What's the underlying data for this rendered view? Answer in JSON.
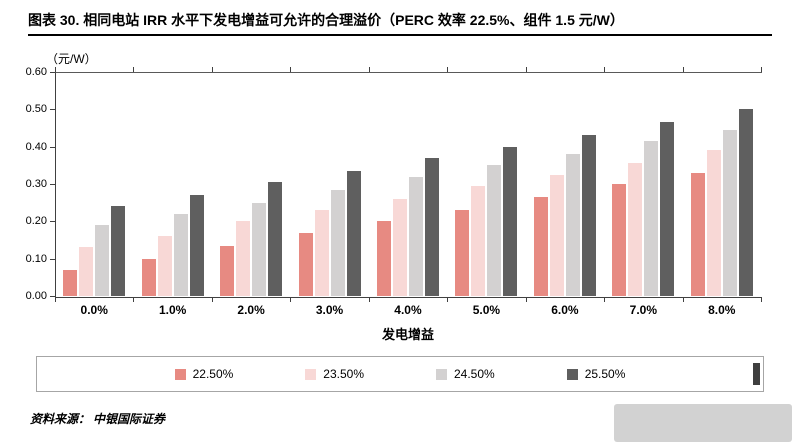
{
  "title": "图表 30. 相同电站 IRR 水平下发电增益可允许的合理溢价（PERC 效率 22.5%、组件 1.5 元/W）",
  "source": "资料来源： 中银国际证券",
  "chart_data": {
    "type": "bar",
    "title": "相同电站 IRR 水平下发电增益可允许的合理溢价（PERC 效率 22.5%、组件 1.5 元/W）",
    "unit_label": "（元/W）",
    "xlabel": "发电增益",
    "ylabel": "元/W",
    "ylim": [
      0,
      0.6
    ],
    "grid": false,
    "legend_position": "bottom",
    "y_ticks": [
      "0.00",
      "0.10",
      "0.20",
      "0.30",
      "0.40",
      "0.50",
      "0.60"
    ],
    "categories": [
      "0.0%",
      "1.0%",
      "2.0%",
      "3.0%",
      "4.0%",
      "5.0%",
      "6.0%",
      "7.0%",
      "8.0%"
    ],
    "series": [
      {
        "name": "22.50%",
        "color": "#e78a82",
        "values": [
          0.07,
          0.1,
          0.135,
          0.17,
          0.2,
          0.23,
          0.265,
          0.3,
          0.33
        ]
      },
      {
        "name": "23.50%",
        "color": "#f8d8d6",
        "values": [
          0.13,
          0.16,
          0.2,
          0.23,
          0.26,
          0.295,
          0.325,
          0.355,
          0.39
        ]
      },
      {
        "name": "24.50%",
        "color": "#d3d1d1",
        "values": [
          0.19,
          0.22,
          0.25,
          0.285,
          0.32,
          0.35,
          0.38,
          0.415,
          0.445
        ]
      },
      {
        "name": "25.50%",
        "color": "#5f5f5f",
        "values": [
          0.24,
          0.27,
          0.305,
          0.335,
          0.37,
          0.4,
          0.43,
          0.465,
          0.5
        ]
      }
    ]
  }
}
